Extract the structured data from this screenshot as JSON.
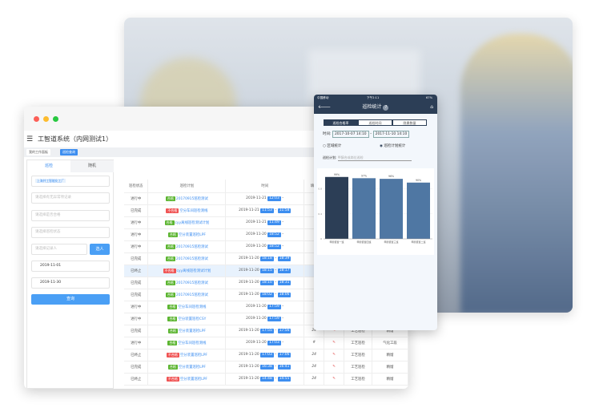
{
  "app": {
    "title": "工智道系统（内网测试1）",
    "tabs": [
      "我的工作面板",
      "巡检查询"
    ]
  },
  "filters": {
    "tabs": [
      "巡检",
      "随机"
    ],
    "factory_tag": "上海井工智能化工厂",
    "abnormal_placeholder": "请选择有无异常项记录",
    "qualified_placeholder": "请选择是否合格",
    "status_placeholder": "请选择巡检状态",
    "recorder_placeholder": "请选择记录人",
    "pick_button": "选人",
    "start_date": "2019-11-01",
    "end_date": "2019-11-30",
    "query_button": "查询"
  },
  "table": {
    "headers": [
      "巡检状态",
      "巡检计划",
      "时间",
      "填写",
      "",
      "",
      ""
    ],
    "rows": [
      {
        "status": "进行中",
        "result": "合格",
        "plan": "20170915巡检测试",
        "date": "2019-11-21",
        "start": "12:03",
        "end": ""
      },
      {
        "status": "已完成",
        "result": "不合格",
        "plan": "空分车间巡检测线",
        "date": "2019-11-21",
        "start": "11:53",
        "end": "11:58"
      },
      {
        "status": "进行中",
        "result": "合格",
        "plan": "cyy离线巡检测试计划",
        "date": "2019-11-21",
        "start": "11:49",
        "end": ""
      },
      {
        "status": "进行中",
        "result": "合格",
        "plan": "空分装置巡检LPF",
        "date": "2019-11-20",
        "start": "18:52",
        "end": ""
      },
      {
        "status": "进行中",
        "result": "合格",
        "plan": "20170915巡检测试",
        "date": "2019-11-20",
        "start": "18:52",
        "end": ""
      },
      {
        "status": "已完成",
        "result": "合格",
        "plan": "20170915巡检测试",
        "date": "2019-11-20",
        "start": "18:18",
        "end": "18:39"
      },
      {
        "status": "已终止",
        "result": "不合格",
        "plan": "cyy离线巡检测试计划",
        "date": "2019-11-20",
        "start": "18:15",
        "end": "18:17"
      },
      {
        "status": "已完成",
        "result": "合格",
        "plan": "20170915巡检测试",
        "date": "2019-11-20",
        "start": "18:10",
        "end": "18:31"
      },
      {
        "status": "已完成",
        "result": "合格",
        "plan": "20170915巡检测试",
        "date": "2019-11-20",
        "start": "18:02",
        "end": "18:06"
      },
      {
        "status": "进行中",
        "result": "合格",
        "plan": "空分车间巡检测线",
        "date": "2019-11-20",
        "start": "17:59",
        "end": ""
      },
      {
        "status": "进行中",
        "result": "合格",
        "plan": "空分装置巡检CSY",
        "date": "2019-11-20",
        "start": "17:59",
        "end": ""
      },
      {
        "status": "已完成",
        "result": "合格",
        "plan": "空分装置巡检LPF",
        "date": "2019-11-20",
        "start": "17:55",
        "end": "17:56",
        "fill": "24",
        "type": "工艺巡检",
        "section": "精馏"
      },
      {
        "status": "进行中",
        "result": "合格",
        "plan": "空分车间巡检测线",
        "date": "2019-11-20",
        "start": "17:03",
        "end": "",
        "fill": "#",
        "type": "工艺巡检",
        "section": "气化工段"
      },
      {
        "status": "已终止",
        "result": "不合格",
        "plan": "空分装置巡检LPF",
        "date": "2019-11-20",
        "start": "17:03",
        "end": "17:06",
        "fill": "24",
        "type": "工艺巡检",
        "section": "精馏"
      },
      {
        "status": "已完成",
        "result": "合格",
        "plan": "空分装置巡检LPF",
        "date": "2019-11-20",
        "start": "16:38",
        "end": "16:41",
        "fill": "24",
        "type": "工艺巡检",
        "section": "精馏"
      },
      {
        "status": "已终止",
        "result": "不合格",
        "plan": "空分装置巡检LPF",
        "date": "2019-11-20",
        "start": "14:48",
        "end": "14:55",
        "fill": "24",
        "type": "工艺巡检",
        "section": "精馏"
      }
    ]
  },
  "colors": {
    "pass": "#5cb531",
    "fail": "#f05454",
    "accent": "#3d8ef0",
    "navy": "#2c3e56",
    "bar_dark": "#2c3e56",
    "bar": "#4f77a3"
  },
  "phone": {
    "carrier": "中国移动",
    "time": "下午2:11",
    "battery": "67%",
    "title": "巡检统计",
    "segments": [
      "巡检合格率",
      "巡检时间",
      "隐患数量"
    ],
    "time_label": "时间:",
    "from": "2017-10-07 14:10",
    "to": "2017-11-10 14:10",
    "radio_area": "区域统计",
    "radio_plan": "巡检计划统计",
    "plan_label": "巡检计划:",
    "plan_value": "甲醇合成岗位巡检"
  },
  "chart_data": {
    "type": "bar",
    "categories": [
      "甲醇装置一班",
      "甲醇装置四班",
      "甲醇装置三班",
      "甲醇装置二班"
    ],
    "values": [
      0.99,
      0.97,
      0.96,
      0.9
    ],
    "labels": [
      "99%",
      "97%",
      "96%",
      "90%"
    ],
    "yticks": [
      "0",
      "0.4",
      "0.8"
    ],
    "ylim": [
      0,
      1
    ]
  }
}
